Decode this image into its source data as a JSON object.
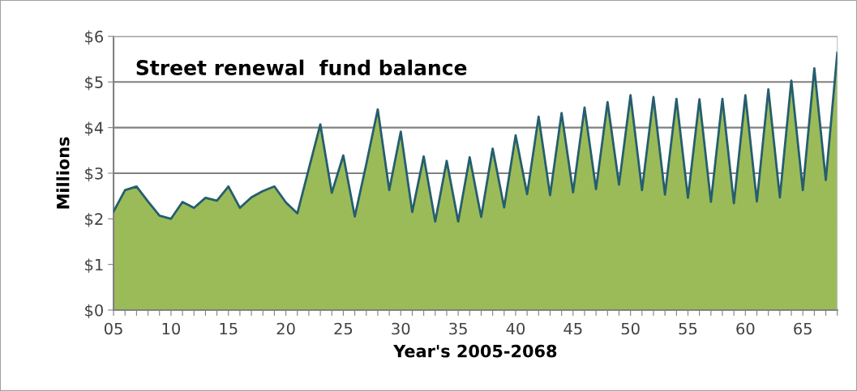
{
  "chart_data": {
    "type": "area",
    "title": "Street renewal  fund balance",
    "xlabel": "Year's 2005-2068",
    "ylabel": "Millions",
    "x": [
      2005,
      2006,
      2007,
      2008,
      2009,
      2010,
      2011,
      2012,
      2013,
      2014,
      2015,
      2016,
      2017,
      2018,
      2019,
      2020,
      2021,
      2022,
      2023,
      2024,
      2025,
      2026,
      2027,
      2028,
      2029,
      2030,
      2031,
      2032,
      2033,
      2034,
      2035,
      2036,
      2037,
      2038,
      2039,
      2040,
      2041,
      2042,
      2043,
      2044,
      2045,
      2046,
      2047,
      2048,
      2049,
      2050,
      2051,
      2052,
      2053,
      2054,
      2055,
      2056,
      2057,
      2058,
      2059,
      2060,
      2061,
      2062,
      2063,
      2064,
      2065,
      2066,
      2067,
      2068
    ],
    "series": [
      {
        "color": "#9bbb59",
        "values": [
          2.16,
          2.63,
          2.71,
          2.38,
          2.07,
          2.0,
          2.37,
          2.24,
          2.46,
          2.4,
          2.71,
          2.24,
          2.47,
          2.61,
          2.71,
          2.36,
          2.12,
          3.1,
          4.07,
          2.57,
          3.39,
          2.05,
          3.2,
          4.4,
          2.63,
          3.91,
          2.15,
          3.37,
          1.94,
          3.27,
          1.94,
          3.35,
          2.04,
          3.54,
          2.25,
          3.83,
          2.54,
          4.24,
          2.52,
          4.32,
          2.58,
          4.44,
          2.65,
          4.56,
          2.75,
          4.71,
          2.63,
          4.67,
          2.53,
          4.63,
          2.46,
          4.62,
          2.37,
          4.63,
          2.34,
          4.71,
          2.38,
          4.84,
          2.47,
          5.03,
          2.63,
          5.3,
          2.85,
          5.64
        ]
      },
      {
        "type": "line",
        "color": "#255e6e",
        "values": [
          2.16,
          2.63,
          2.71,
          2.38,
          2.07,
          2.0,
          2.37,
          2.24,
          2.46,
          2.4,
          2.71,
          2.24,
          2.47,
          2.61,
          2.71,
          2.36,
          2.12,
          3.1,
          4.07,
          2.57,
          3.39,
          2.05,
          3.2,
          4.4,
          2.63,
          3.91,
          2.15,
          3.37,
          1.94,
          3.27,
          1.94,
          3.35,
          2.04,
          3.54,
          2.25,
          3.83,
          2.54,
          4.24,
          2.52,
          4.32,
          2.58,
          4.44,
          2.65,
          4.56,
          2.75,
          4.71,
          2.63,
          4.67,
          2.53,
          4.63,
          2.46,
          4.62,
          2.37,
          4.63,
          2.34,
          4.71,
          2.38,
          4.84,
          2.47,
          5.03,
          2.63,
          5.3,
          2.85,
          5.64
        ]
      }
    ],
    "xlim": [
      2005,
      2068
    ],
    "xticks": [
      {
        "value": 2005,
        "label": "05"
      },
      {
        "value": 2006,
        "label": null
      },
      {
        "value": 2007,
        "label": null
      },
      {
        "value": 2008,
        "label": null
      },
      {
        "value": 2009,
        "label": null
      },
      {
        "value": 2010,
        "label": "10"
      },
      {
        "value": 2011,
        "label": null
      },
      {
        "value": 2012,
        "label": null
      },
      {
        "value": 2013,
        "label": null
      },
      {
        "value": 2014,
        "label": null
      },
      {
        "value": 2015,
        "label": "15"
      },
      {
        "value": 2016,
        "label": null
      },
      {
        "value": 2017,
        "label": null
      },
      {
        "value": 2018,
        "label": null
      },
      {
        "value": 2019,
        "label": null
      },
      {
        "value": 2020,
        "label": "20"
      },
      {
        "value": 2021,
        "label": null
      },
      {
        "value": 2022,
        "label": null
      },
      {
        "value": 2023,
        "label": null
      },
      {
        "value": 2024,
        "label": null
      },
      {
        "value": 2025,
        "label": "25"
      },
      {
        "value": 2026,
        "label": null
      },
      {
        "value": 2027,
        "label": null
      },
      {
        "value": 2028,
        "label": null
      },
      {
        "value": 2029,
        "label": null
      },
      {
        "value": 2030,
        "label": "30"
      },
      {
        "value": 2031,
        "label": null
      },
      {
        "value": 2032,
        "label": null
      },
      {
        "value": 2033,
        "label": null
      },
      {
        "value": 2034,
        "label": null
      },
      {
        "value": 2035,
        "label": "35"
      },
      {
        "value": 2036,
        "label": null
      },
      {
        "value": 2037,
        "label": null
      },
      {
        "value": 2038,
        "label": null
      },
      {
        "value": 2039,
        "label": null
      },
      {
        "value": 2040,
        "label": "40"
      },
      {
        "value": 2041,
        "label": null
      },
      {
        "value": 2042,
        "label": null
      },
      {
        "value": 2043,
        "label": null
      },
      {
        "value": 2044,
        "label": null
      },
      {
        "value": 2045,
        "label": "45"
      },
      {
        "value": 2046,
        "label": null
      },
      {
        "value": 2047,
        "label": null
      },
      {
        "value": 2048,
        "label": null
      },
      {
        "value": 2049,
        "label": null
      },
      {
        "value": 2050,
        "label": "50"
      },
      {
        "value": 2051,
        "label": null
      },
      {
        "value": 2052,
        "label": null
      },
      {
        "value": 2053,
        "label": null
      },
      {
        "value": 2054,
        "label": null
      },
      {
        "value": 2055,
        "label": "55"
      },
      {
        "value": 2056,
        "label": null
      },
      {
        "value": 2057,
        "label": null
      },
      {
        "value": 2058,
        "label": null
      },
      {
        "value": 2059,
        "label": null
      },
      {
        "value": 2060,
        "label": "60"
      },
      {
        "value": 2061,
        "label": null
      },
      {
        "value": 2062,
        "label": null
      },
      {
        "value": 2063,
        "label": null
      },
      {
        "value": 2064,
        "label": null
      },
      {
        "value": 2065,
        "label": "65"
      },
      {
        "value": 2066,
        "label": null
      },
      {
        "value": 2067,
        "label": null
      },
      {
        "value": 2068,
        "label": null
      }
    ],
    "ylim": [
      0,
      6
    ],
    "yticks": [
      {
        "value": 0,
        "label": "$0"
      },
      {
        "value": 1,
        "label": "$1"
      },
      {
        "value": 2,
        "label": "$2"
      },
      {
        "value": 3,
        "label": "$3"
      },
      {
        "value": 4,
        "label": "$4"
      },
      {
        "value": 5,
        "label": "$5"
      },
      {
        "value": 6,
        "label": "$6"
      }
    ],
    "grid": "y",
    "line_style": "solid"
  }
}
